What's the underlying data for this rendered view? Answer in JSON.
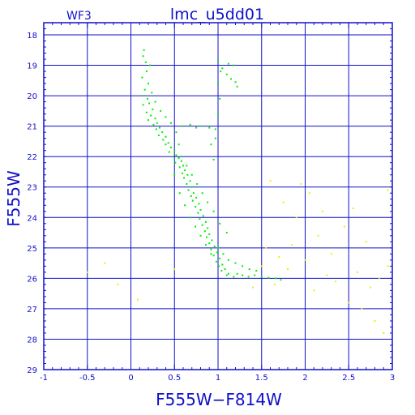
{
  "header": {
    "chip": "WF3",
    "title": "lmc_u5dd01"
  },
  "chart_data": {
    "type": "scatter",
    "title": "lmc_u5dd01",
    "xlabel": "F555W−F814W",
    "ylabel": "F555W",
    "xlim": [
      -1,
      3
    ],
    "ylim": [
      29,
      17.6
    ],
    "y_inverted": true,
    "grid": true,
    "x_ticks": [
      -1,
      -0.5,
      0,
      0.5,
      1,
      1.5,
      2,
      2.5,
      3
    ],
    "x_tick_labels": [
      "-1",
      "-0.5",
      "0",
      "0.5",
      "1",
      "1.5",
      "2",
      "2.5",
      "3"
    ],
    "y_ticks": [
      18,
      19,
      20,
      21,
      22,
      23,
      24,
      25,
      26,
      27,
      28,
      29
    ],
    "y_tick_labels": [
      "18",
      "19",
      "20",
      "21",
      "22",
      "23",
      "24",
      "25",
      "26",
      "27",
      "28",
      "29"
    ],
    "colors": {
      "frame": "#1010c8",
      "grid": "#1010c8",
      "series_main": "#00ee00",
      "series_outliers": "#eeee00"
    },
    "series": [
      {
        "id": "main",
        "color": "#00ee00",
        "points": [
          [
            0.15,
            18.5
          ],
          [
            0.14,
            18.7
          ],
          [
            0.17,
            18.9
          ],
          [
            0.22,
            19.0
          ],
          [
            0.18,
            19.2
          ],
          [
            0.13,
            19.4
          ],
          [
            0.2,
            19.6
          ],
          [
            0.16,
            19.8
          ],
          [
            0.15,
            20.0
          ],
          [
            0.19,
            20.1
          ],
          [
            0.21,
            20.25
          ],
          [
            0.14,
            20.3
          ],
          [
            0.25,
            20.45
          ],
          [
            0.18,
            20.55
          ],
          [
            0.23,
            20.65
          ],
          [
            0.28,
            20.75
          ],
          [
            0.2,
            20.8
          ],
          [
            0.3,
            20.9
          ],
          [
            0.26,
            20.95
          ],
          [
            0.33,
            21.05
          ],
          [
            0.29,
            21.1
          ],
          [
            0.36,
            21.2
          ],
          [
            0.32,
            21.3
          ],
          [
            0.4,
            21.35
          ],
          [
            0.37,
            21.45
          ],
          [
            0.43,
            21.55
          ],
          [
            0.4,
            21.6
          ],
          [
            0.46,
            21.7
          ],
          [
            0.5,
            21.8
          ],
          [
            0.44,
            21.85
          ],
          [
            0.52,
            21.95
          ],
          [
            0.48,
            22.0
          ],
          [
            0.55,
            22.05
          ],
          [
            0.58,
            22.15
          ],
          [
            0.51,
            22.2
          ],
          [
            0.6,
            22.3
          ],
          [
            0.56,
            22.35
          ],
          [
            0.62,
            22.45
          ],
          [
            0.59,
            22.55
          ],
          [
            0.65,
            22.6
          ],
          [
            0.61,
            22.7
          ],
          [
            0.68,
            22.8
          ],
          [
            0.64,
            22.9
          ],
          [
            0.7,
            23.0
          ],
          [
            0.66,
            23.1
          ],
          [
            0.72,
            23.2
          ],
          [
            0.69,
            23.3
          ],
          [
            0.75,
            23.35
          ],
          [
            0.71,
            23.45
          ],
          [
            0.78,
            23.55
          ],
          [
            0.74,
            23.65
          ],
          [
            0.8,
            23.75
          ],
          [
            0.77,
            23.85
          ],
          [
            0.83,
            23.95
          ],
          [
            0.79,
            24.05
          ],
          [
            0.86,
            24.15
          ],
          [
            0.82,
            24.25
          ],
          [
            0.88,
            24.35
          ],
          [
            0.85,
            24.45
          ],
          [
            0.9,
            24.55
          ],
          [
            0.87,
            24.65
          ],
          [
            0.93,
            24.75
          ],
          [
            0.9,
            24.85
          ],
          [
            0.96,
            24.95
          ],
          [
            0.92,
            25.05
          ],
          [
            0.99,
            25.15
          ],
          [
            0.95,
            25.25
          ],
          [
            1.02,
            25.35
          ],
          [
            0.98,
            25.45
          ],
          [
            1.05,
            25.55
          ],
          [
            1.01,
            25.6
          ],
          [
            1.08,
            25.7
          ],
          [
            1.04,
            25.75
          ],
          [
            1.12,
            25.85
          ],
          [
            1.1,
            25.9
          ],
          [
            1.18,
            25.95
          ],
          [
            1.22,
            25.85
          ],
          [
            1.28,
            25.9
          ],
          [
            1.35,
            25.95
          ],
          [
            1.42,
            25.9
          ],
          [
            1.5,
            25.95
          ],
          [
            1.58,
            25.98
          ],
          [
            1.66,
            26.0
          ],
          [
            1.72,
            26.05
          ],
          [
            0.6,
            21.0
          ],
          [
            0.68,
            20.95
          ],
          [
            0.75,
            21.05
          ],
          [
            0.82,
            21.0
          ],
          [
            0.9,
            21.05
          ],
          [
            0.97,
            21.1
          ],
          [
            0.92,
            21.6
          ],
          [
            0.95,
            22.1
          ],
          [
            0.97,
            21.4
          ],
          [
            1.0,
            20.6
          ],
          [
            1.02,
            20.1
          ],
          [
            1.0,
            19.6
          ],
          [
            1.03,
            19.2
          ],
          [
            1.0,
            18.85
          ],
          [
            1.05,
            19.1
          ],
          [
            1.1,
            19.3
          ],
          [
            1.15,
            19.45
          ],
          [
            1.12,
            18.95
          ],
          [
            1.18,
            19.0
          ],
          [
            1.2,
            19.55
          ],
          [
            1.22,
            19.7
          ],
          [
            0.5,
            22.6
          ],
          [
            0.56,
            23.2
          ],
          [
            0.62,
            23.6
          ],
          [
            0.68,
            24.0
          ],
          [
            0.74,
            24.3
          ],
          [
            0.8,
            24.6
          ],
          [
            0.86,
            24.9
          ],
          [
            0.92,
            25.2
          ],
          [
            1.0,
            25.0
          ],
          [
            1.06,
            25.2
          ],
          [
            1.12,
            25.4
          ],
          [
            1.2,
            25.5
          ],
          [
            1.28,
            25.6
          ],
          [
            1.36,
            25.7
          ],
          [
            1.44,
            25.75
          ],
          [
            1.1,
            24.5
          ],
          [
            1.02,
            24.2
          ],
          [
            0.95,
            23.8
          ],
          [
            0.88,
            23.5
          ],
          [
            0.82,
            23.2
          ],
          [
            0.76,
            22.9
          ],
          [
            0.7,
            22.6
          ],
          [
            0.64,
            22.3
          ],
          [
            0.58,
            22.0
          ],
          [
            0.55,
            21.6
          ],
          [
            0.52,
            21.2
          ],
          [
            0.46,
            20.9
          ],
          [
            0.4,
            20.7
          ],
          [
            0.34,
            20.5
          ],
          [
            0.28,
            20.2
          ],
          [
            0.24,
            19.9
          ]
        ]
      },
      {
        "id": "outliers",
        "color": "#eeee00",
        "points": [
          [
            -0.3,
            25.5
          ],
          [
            -0.15,
            26.2
          ],
          [
            0.08,
            26.7
          ],
          [
            -0.5,
            25.8
          ],
          [
            0.5,
            25.7
          ],
          [
            1.55,
            25.0
          ],
          [
            1.7,
            25.3
          ],
          [
            1.85,
            24.9
          ],
          [
            2.0,
            25.4
          ],
          [
            2.15,
            24.6
          ],
          [
            2.3,
            25.2
          ],
          [
            2.45,
            24.3
          ],
          [
            2.6,
            25.8
          ],
          [
            2.75,
            26.3
          ],
          [
            2.85,
            26.0
          ],
          [
            2.95,
            25.6
          ],
          [
            2.5,
            26.8
          ],
          [
            2.65,
            27.0
          ],
          [
            2.8,
            27.4
          ],
          [
            2.9,
            27.8
          ],
          [
            2.2,
            23.8
          ],
          [
            2.05,
            23.2
          ],
          [
            1.95,
            22.9
          ],
          [
            1.75,
            23.5
          ],
          [
            1.6,
            22.8
          ],
          [
            1.9,
            24.0
          ],
          [
            2.35,
            26.1
          ],
          [
            2.1,
            26.4
          ],
          [
            1.8,
            25.7
          ],
          [
            2.55,
            23.7
          ],
          [
            2.7,
            24.8
          ],
          [
            2.95,
            23.1
          ],
          [
            1.4,
            26.3
          ],
          [
            1.5,
            25.6
          ],
          [
            1.65,
            26.2
          ],
          [
            2.25,
            25.9
          ]
        ]
      }
    ]
  }
}
